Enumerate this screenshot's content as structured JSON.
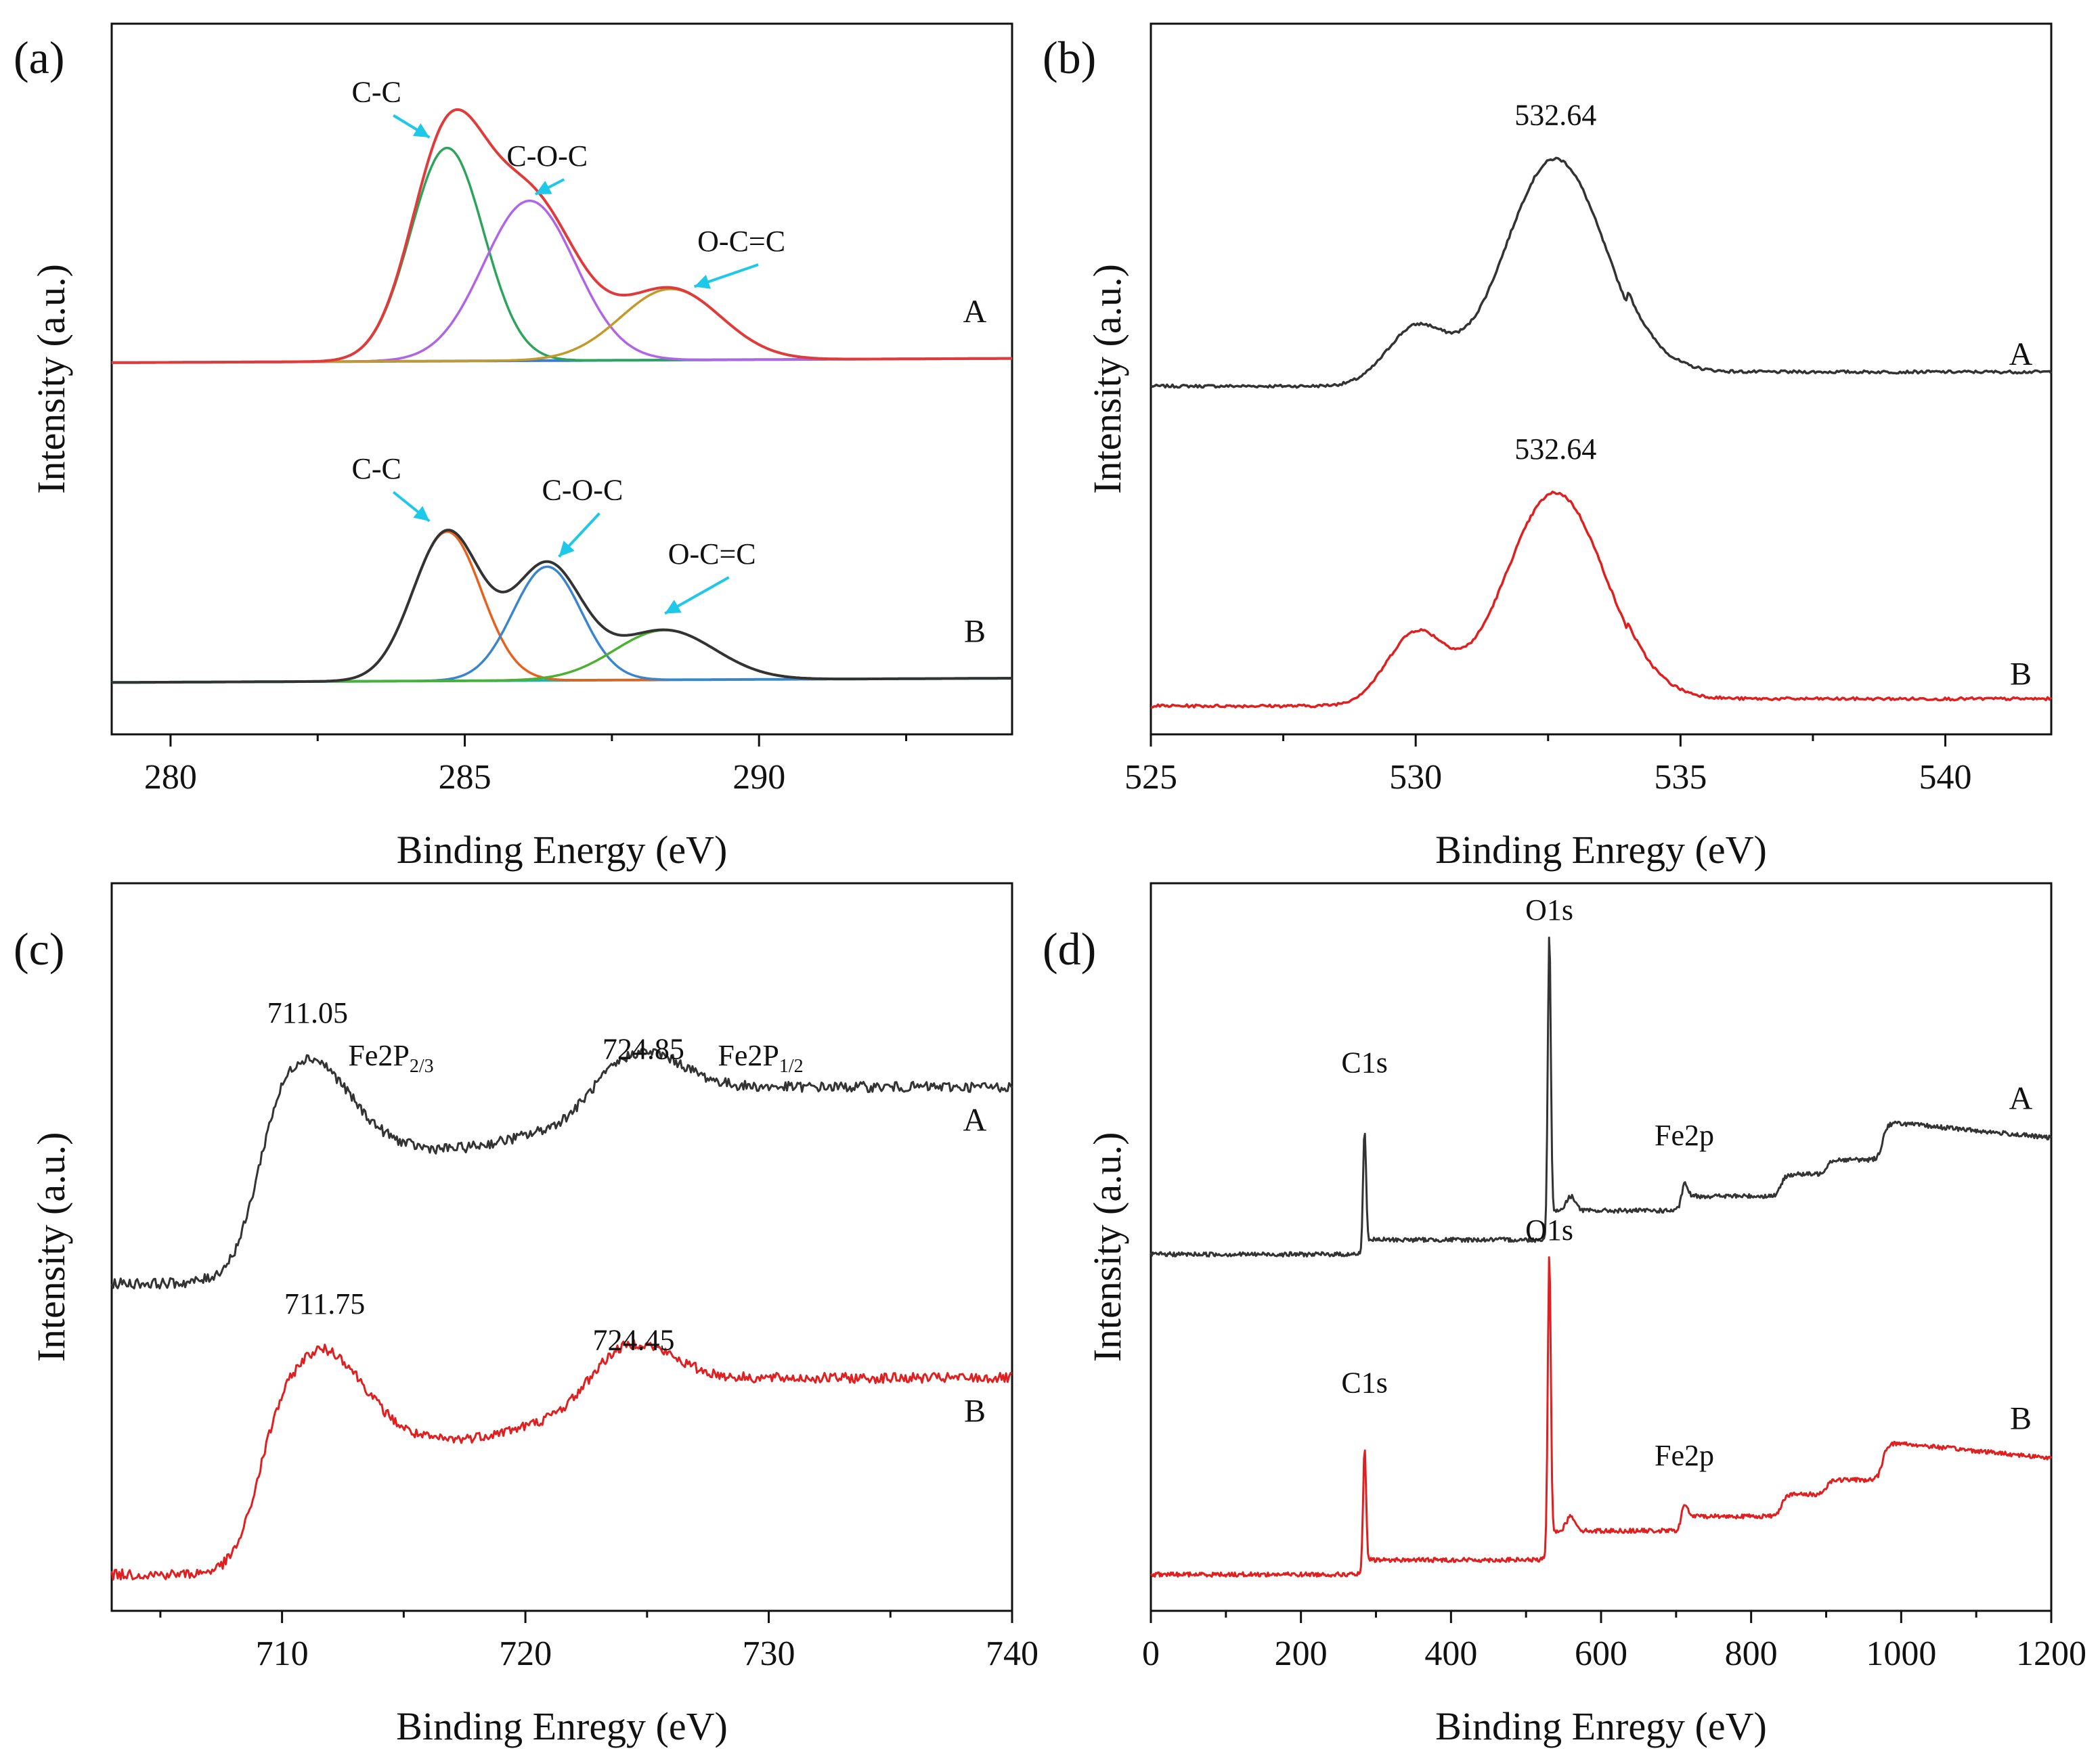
{
  "figure": {
    "panels": [
      {
        "id": "a",
        "label": "(a)",
        "xlabel": "Binding Energy (eV)",
        "ylabel": "Intensity (a.u.)",
        "xlim": [
          279,
          294.3
        ],
        "xticks": [
          280,
          285,
          290
        ],
        "minor_step": 2.5,
        "traces": [
          {
            "name": "A",
            "offset": 0.52,
            "peaks": [
              {
                "label": "C-C",
                "center": 284.7,
                "height": 0.3,
                "sigma": 0.62,
                "color": "#2ca45a"
              },
              {
                "label": "C-O-C",
                "center": 286.1,
                "height": 0.225,
                "sigma": 0.78,
                "color": "#b064e8"
              },
              {
                "label": "O-C=C",
                "center": 288.5,
                "height": 0.1,
                "sigma": 0.85,
                "color": "#c29a2a"
              }
            ],
            "envelope_color": "#e03a3a",
            "baseline_color": "#3a7bd5",
            "annotations": [
              {
                "text": "C-C",
                "tx": 283.5,
                "ty": 0.89,
                "ax": 284.4,
                "ay": 0.84
              },
              {
                "text": "C-O-C",
                "tx": 286.4,
                "ty": 0.8,
                "ax": 286.2,
                "ay": 0.76
              },
              {
                "text": "O-C=C",
                "tx": 289.7,
                "ty": 0.68,
                "ax": 288.9,
                "ay": 0.63
              }
            ]
          },
          {
            "name": "B",
            "offset": 0.07,
            "peaks": [
              {
                "label": "C-C",
                "center": 284.7,
                "height": 0.21,
                "sigma": 0.58,
                "color": "#e8601c"
              },
              {
                "label": "C-O-C",
                "center": 286.4,
                "height": 0.16,
                "sigma": 0.58,
                "color": "#3a86cc"
              },
              {
                "label": "O-C=C",
                "center": 288.4,
                "height": 0.07,
                "sigma": 0.85,
                "color": "#4cb030"
              }
            ],
            "envelope_color": "#333333",
            "baseline_color": "#20b2aa",
            "annotations": [
              {
                "text": "C-C",
                "tx": 283.5,
                "ty": 0.36,
                "ax": 284.4,
                "ay": 0.3
              },
              {
                "text": "C-O-C",
                "tx": 287.0,
                "ty": 0.33,
                "ax": 286.6,
                "ay": 0.25
              },
              {
                "text": "O-C=C",
                "tx": 289.2,
                "ty": 0.24,
                "ax": 288.4,
                "ay": 0.17
              }
            ]
          }
        ]
      },
      {
        "id": "b",
        "label": "(b)",
        "xlabel": "Binding Enregy (eV)",
        "ylabel": "Intensity (a.u.)",
        "xlim": [
          525,
          542
        ],
        "xticks": [
          525,
          530,
          535,
          540
        ],
        "minor_step": 2.5,
        "traces": [
          {
            "name": "A",
            "color": "#333333",
            "offset": 0.49,
            "main_center": 532.64,
            "main_height": 0.32,
            "shoulder_center": 530.0,
            "shoulder_height": 0.08,
            "tail": 0.02,
            "peak_label": "532.64"
          },
          {
            "name": "B",
            "color": "#e02020",
            "offset": 0.04,
            "main_center": 532.64,
            "main_height": 0.3,
            "shoulder_center": 530.0,
            "shoulder_height": 0.1,
            "tail": 0.01,
            "peak_label": "532.64"
          }
        ]
      },
      {
        "id": "c",
        "label": "(c)",
        "xlabel": "Binding Enregy (eV)",
        "ylabel": "Intensity (a.u.)",
        "xlim": [
          703,
          740
        ],
        "xticks": [
          710,
          720,
          730,
          740
        ],
        "minor_step": 5,
        "traces": [
          {
            "name": "A",
            "color": "#333333",
            "offset": 0.45,
            "peaks": [
              {
                "value": "711.05",
                "center": 711.05,
                "term": "Fe2P",
                "sub": "2/3"
              },
              {
                "value": "724.85",
                "center": 724.85,
                "term": "Fe2P",
                "sub": "1/2"
              }
            ]
          },
          {
            "name": "B",
            "color": "#e02020",
            "offset": 0.05,
            "peaks": [
              {
                "value": "711.75",
                "center": 711.75
              },
              {
                "value": "724.45",
                "center": 724.45
              }
            ]
          }
        ]
      },
      {
        "id": "d",
        "label": "(d)",
        "xlabel": "Binding Enregy (eV)",
        "ylabel": "Intensity (a.u.)",
        "xlim": [
          0,
          1200
        ],
        "xticks": [
          0,
          200,
          400,
          600,
          800,
          1000,
          1200
        ],
        "minor_step": 100,
        "traces": [
          {
            "name": "A",
            "color": "#333333",
            "offset": 0.48,
            "peaks": [
              {
                "label": "C1s",
                "center": 284.8
              },
              {
                "label": "O1s",
                "center": 531.0
              },
              {
                "label": "Fe2p",
                "center": 711.0
              }
            ]
          },
          {
            "name": "B",
            "color": "#e02020",
            "offset": 0.04,
            "peaks": [
              {
                "label": "C1s",
                "center": 284.8
              },
              {
                "label": "O1s",
                "center": 531.0
              },
              {
                "label": "Fe2p",
                "center": 711.0
              }
            ]
          }
        ]
      }
    ]
  },
  "chart_data": [
    {
      "type": "line",
      "panel": "(a)",
      "xlabel": "Binding Energy (eV)",
      "ylabel": "Intensity (a.u.)",
      "xlim": [
        279,
        294.3
      ],
      "series": [
        {
          "name": "A",
          "peak_positions_eV": [
            284.7,
            286.1,
            288.5
          ],
          "peak_labels": [
            "C-C",
            "C-O-C",
            "O-C=C"
          ]
        },
        {
          "name": "B",
          "peak_positions_eV": [
            284.7,
            286.4,
            288.4
          ],
          "peak_labels": [
            "C-C",
            "C-O-C",
            "O-C=C"
          ]
        }
      ]
    },
    {
      "type": "line",
      "panel": "(b)",
      "xlabel": "Binding Enregy (eV)",
      "ylabel": "Intensity (a.u.)",
      "xlim": [
        525,
        542
      ],
      "series": [
        {
          "name": "A",
          "peak_eV": 532.64,
          "shoulder_eV": 530.0
        },
        {
          "name": "B",
          "peak_eV": 532.64,
          "shoulder_eV": 530.0
        }
      ]
    },
    {
      "type": "line",
      "panel": "(c)",
      "xlabel": "Binding Enregy (eV)",
      "ylabel": "Intensity (a.u.)",
      "xlim": [
        703,
        740
      ],
      "series": [
        {
          "name": "A",
          "peak_eV": [
            711.05,
            724.85
          ],
          "peak_labels": [
            "Fe2P2/3",
            "Fe2P1/2"
          ]
        },
        {
          "name": "B",
          "peak_eV": [
            711.75,
            724.45
          ]
        }
      ]
    },
    {
      "type": "line",
      "panel": "(d)",
      "xlabel": "Binding Enregy (eV)",
      "ylabel": "Intensity (a.u.)",
      "xlim": [
        0,
        1200
      ],
      "series": [
        {
          "name": "A",
          "peaks": [
            {
              "label": "C1s",
              "eV": 284.8
            },
            {
              "label": "O1s",
              "eV": 531.0
            },
            {
              "label": "Fe2p",
              "eV": 711.0
            }
          ]
        },
        {
          "name": "B",
          "peaks": [
            {
              "label": "C1s",
              "eV": 284.8
            },
            {
              "label": "O1s",
              "eV": 531.0
            },
            {
              "label": "Fe2p",
              "eV": 711.0
            }
          ]
        }
      ]
    }
  ]
}
